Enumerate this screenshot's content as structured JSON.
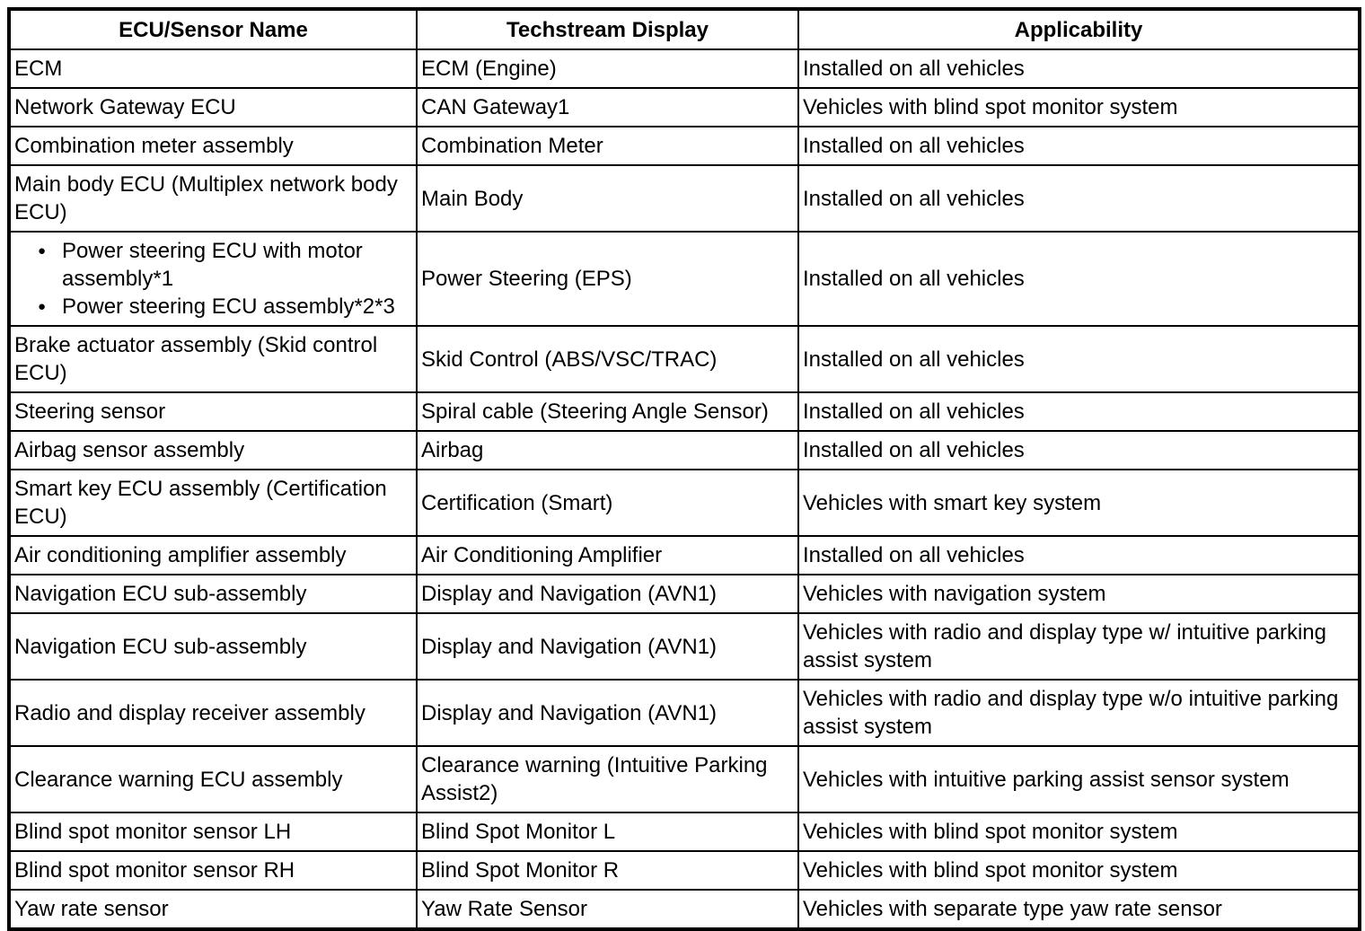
{
  "table": {
    "bullet_glyph": "●",
    "columns": [
      "ECU/Sensor Name",
      "Techstream Display",
      "Applicability"
    ],
    "rows": [
      {
        "name": "ECM",
        "techstream": "ECM (Engine)",
        "applicability": "Installed on all vehicles"
      },
      {
        "name": "Network Gateway ECU",
        "techstream": "CAN Gateway1",
        "applicability": "Vehicles with blind spot monitor system"
      },
      {
        "name": "Combination meter assembly",
        "techstream": "Combination Meter",
        "applicability": "Installed on all vehicles"
      },
      {
        "name": "Main body ECU (Multiplex network body ECU)",
        "techstream": "Main Body",
        "applicability": "Installed on all vehicles"
      },
      {
        "name_bullets": [
          "Power steering ECU with motor assembly*1",
          "Power steering ECU assembly*2*3"
        ],
        "techstream": "Power Steering (EPS)",
        "applicability": "Installed on all vehicles"
      },
      {
        "name": "Brake actuator assembly (Skid control ECU)",
        "techstream": "Skid Control (ABS/VSC/TRAC)",
        "applicability": "Installed on all vehicles"
      },
      {
        "name": "Steering sensor",
        "techstream": "Spiral cable (Steering Angle Sensor)",
        "applicability": "Installed on all vehicles"
      },
      {
        "name": "Airbag sensor assembly",
        "techstream": "Airbag",
        "applicability": "Installed on all vehicles"
      },
      {
        "name": "Smart key ECU assembly (Certification ECU)",
        "techstream": "Certification (Smart)",
        "applicability": "Vehicles with smart key system"
      },
      {
        "name": "Air conditioning amplifier assembly",
        "techstream": "Air Conditioning Amplifier",
        "applicability": "Installed on all vehicles"
      },
      {
        "name": "Navigation ECU sub-assembly",
        "techstream": "Display and Navigation (AVN1)",
        "applicability": "Vehicles with navigation system"
      },
      {
        "name": "Navigation ECU sub-assembly",
        "techstream": "Display and Navigation (AVN1)",
        "applicability": "Vehicles with radio and display type w/ intuitive parking assist system"
      },
      {
        "name": "Radio and display receiver assembly",
        "techstream": "Display and Navigation (AVN1)",
        "applicability": "Vehicles with radio and display type w/o intuitive parking assist system"
      },
      {
        "name": "Clearance warning ECU assembly",
        "techstream": "Clearance warning (Intuitive Parking Assist2)",
        "applicability": "Vehicles with intuitive parking assist sensor system"
      },
      {
        "name": "Blind spot monitor sensor LH",
        "techstream": "Blind Spot Monitor L",
        "applicability": "Vehicles with blind spot monitor system"
      },
      {
        "name": "Blind spot monitor sensor RH",
        "techstream": "Blind Spot Monitor R",
        "applicability": "Vehicles with blind spot monitor system"
      },
      {
        "name": "Yaw rate sensor",
        "techstream": "Yaw Rate Sensor",
        "applicability": "Vehicles with separate type yaw rate sensor"
      }
    ]
  }
}
